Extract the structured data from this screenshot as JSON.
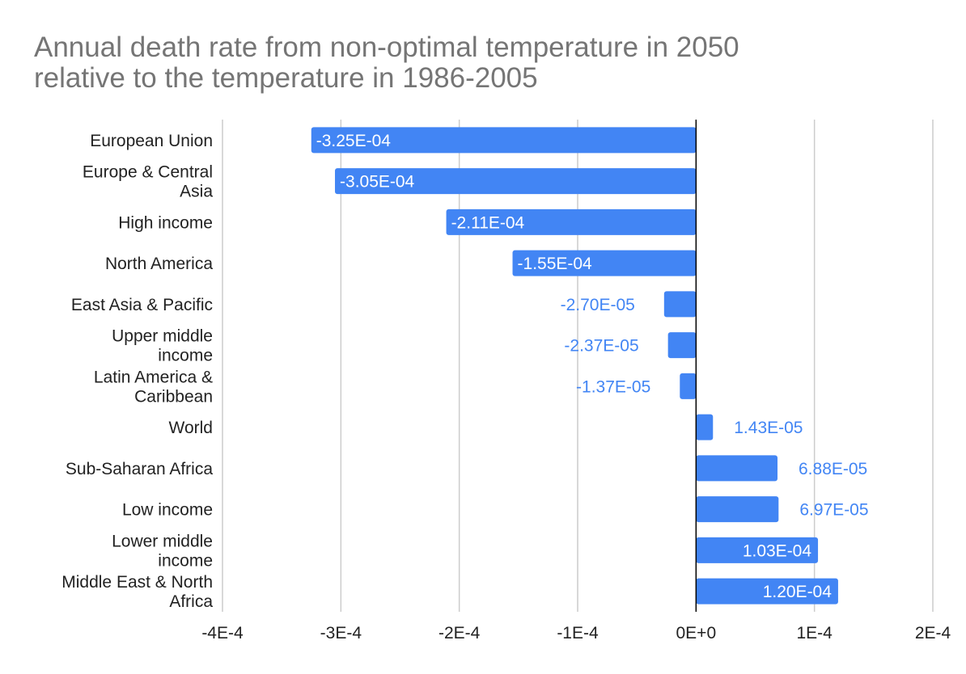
{
  "chart_data": {
    "type": "bar",
    "orientation": "horizontal",
    "title": "Annual death rate from non-optimal temperature in 2050 relative to the temperature in 1986-2005",
    "title_lines": [
      "Annual death rate from non-optimal temperature in 2050",
      "relative to the temperature in 1986-2005"
    ],
    "categories": [
      "European Union",
      "Europe & Central Asia",
      "High income",
      "North America",
      "East Asia & Pacific",
      "Upper middle income",
      "Latin America & Caribbean",
      "World",
      "Sub-Saharan Africa",
      "Low income",
      "Lower middle income",
      "Middle East & North Africa"
    ],
    "category_lines": [
      [
        "European Union"
      ],
      [
        "Europe & Central",
        "Asia"
      ],
      [
        "High income"
      ],
      [
        "North America"
      ],
      [
        "East Asia & Pacific"
      ],
      [
        "Upper middle",
        "income"
      ],
      [
        "Latin America &",
        "Caribbean"
      ],
      [
        "World"
      ],
      [
        "Sub-Saharan Africa"
      ],
      [
        "Low income"
      ],
      [
        "Lower middle",
        "income"
      ],
      [
        "Middle East & North",
        "Africa"
      ]
    ],
    "values": [
      -0.000325,
      -0.000305,
      -0.000211,
      -0.000155,
      -2.7e-05,
      -2.37e-05,
      -1.37e-05,
      1.43e-05,
      6.88e-05,
      6.97e-05,
      0.000103,
      0.00012
    ],
    "data_labels": [
      "-3.25E-04",
      "-3.05E-04",
      "-2.11E-04",
      "-1.55E-04",
      "-2.70E-05",
      "-2.37E-05",
      "-1.37E-05",
      "1.43E-05",
      "6.88E-05",
      "6.97E-05",
      "1.03E-04",
      "1.20E-04"
    ],
    "xlim": [
      -0.0004,
      0.0002
    ],
    "x_ticks": [
      -0.0004,
      -0.0003,
      -0.0002,
      -0.0001,
      0,
      0.0001,
      0.0002
    ],
    "x_tick_labels": [
      "-4E-4",
      "-3E-4",
      "-2E-4",
      "-1E-4",
      "0E+0",
      "1E-4",
      "2E-4"
    ],
    "xlabel": "",
    "ylabel": "",
    "grid": true,
    "legend": "none",
    "bar_color": "#4285f4",
    "inside_label_color": "#ffffff",
    "outside_label_color": "#4285f4",
    "grid_color": "#cccccc",
    "zero_line_color": "#000000"
  }
}
